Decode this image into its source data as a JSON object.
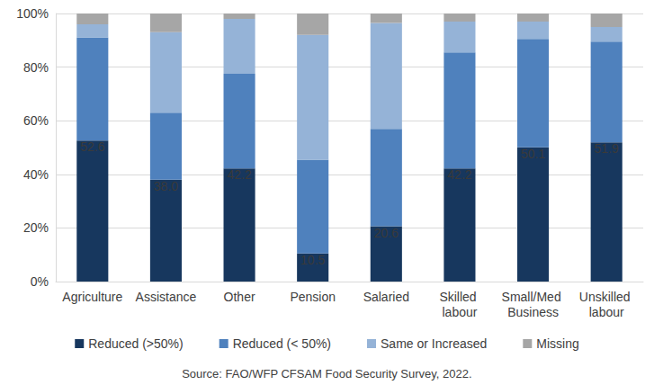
{
  "chart_data": {
    "type": "bar",
    "stacked": true,
    "grid": true,
    "legend": "bottom",
    "categories": [
      "Agriculture",
      "Assistance",
      "Other",
      "Pension",
      "Salaried",
      "Skilled labour",
      "Small/Med Business",
      "Unskilled labour"
    ],
    "series": [
      {
        "name": "Reduced (>50%)",
        "color": "#17375e",
        "data_labels": true,
        "values": [
          52.6,
          38.0,
          42.2,
          10.5,
          20.6,
          42.2,
          50.1,
          51.9
        ],
        "value_labels": [
          "52.6",
          "38.0",
          "42.2",
          "10.5",
          "20.6",
          "42.2",
          "50.1",
          "51.9"
        ]
      },
      {
        "name": "Reduced (< 50%)",
        "color": "#4f81bd",
        "values": [
          38.4,
          25.0,
          35.3,
          35.0,
          36.4,
          43.3,
          40.4,
          37.6
        ]
      },
      {
        "name": "Same or Increased",
        "color": "#95b3d7",
        "values": [
          5.0,
          30.0,
          20.5,
          46.5,
          39.5,
          11.5,
          6.5,
          5.5
        ]
      },
      {
        "name": "Missing",
        "color": "#a6a6a6",
        "values": [
          4.0,
          7.0,
          2.0,
          8.0,
          3.5,
          3.0,
          3.0,
          5.0
        ]
      }
    ],
    "ylim": [
      0,
      100
    ],
    "yticks": [
      {
        "value": 0,
        "label": "0%"
      },
      {
        "value": 20,
        "label": "20%"
      },
      {
        "value": 40,
        "label": "40%"
      },
      {
        "value": 60,
        "label": "60%"
      },
      {
        "value": 80,
        "label": "80%"
      },
      {
        "value": 100,
        "label": "100%"
      }
    ],
    "annotations": [
      "Source: FAO/WFP CFSAM Food Security Survey, 2022."
    ]
  }
}
